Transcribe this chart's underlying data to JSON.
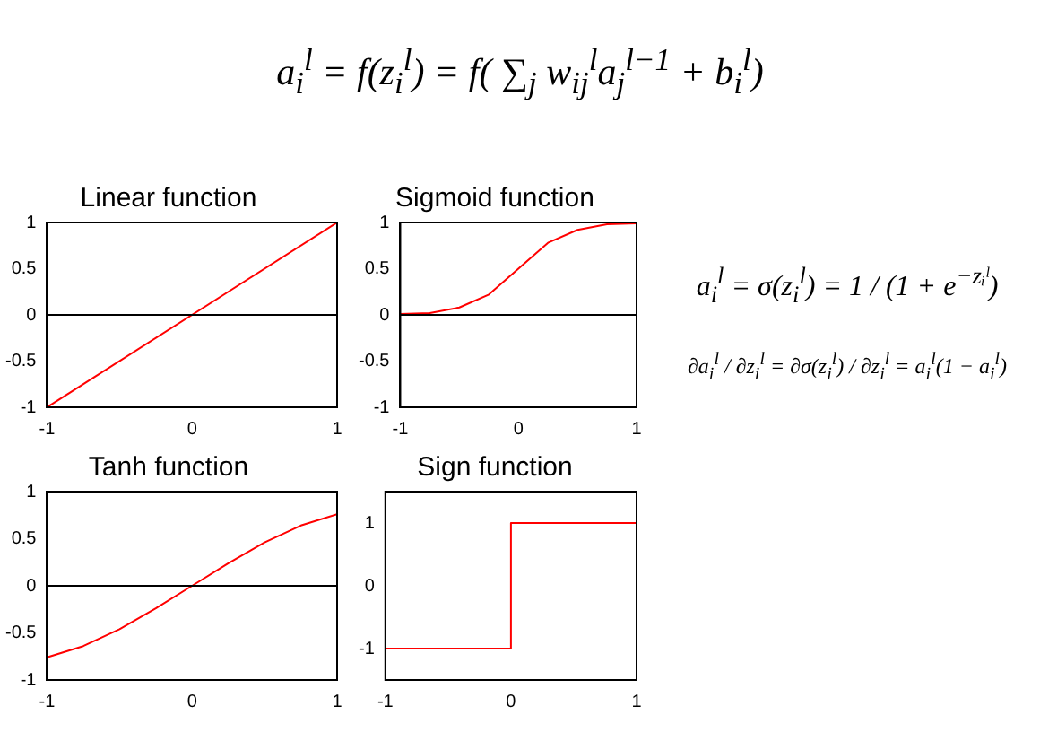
{
  "chart_data": [
    {
      "type": "other",
      "annotations": [
        "a$_{i}$$^{l}$ = f(z$_{i}$$^{l}$) = f( ∑$_{j}$ w$_{ij}$$^{l}$a$_{j}$$^{l−1}$ + b$_{i}$$^{l}$)"
      ]
    },
    {
      "type": "line",
      "title": "Linear function",
      "xlim": [
        -1,
        1
      ],
      "xticks": [
        -1,
        0,
        1
      ],
      "ylim": [
        -1,
        1
      ],
      "yticks": [
        -1,
        -0.5,
        0,
        0.5,
        1
      ],
      "marker": "none",
      "ref_lines": [
        {
          "axis": "y",
          "value": 0,
          "color": "#000000"
        }
      ],
      "series": [
        {
          "color": "#ff0000",
          "x": [
            -1,
            1
          ],
          "values": [
            -1,
            1
          ]
        }
      ]
    },
    {
      "type": "line",
      "title": "Sigmoid function",
      "xlim": [
        -1,
        1
      ],
      "xticks": [
        -1,
        0,
        1
      ],
      "ylim": [
        -1,
        1
      ],
      "yticks": [
        -1,
        -0.5,
        0,
        0.5,
        1
      ],
      "marker": "none",
      "ref_lines": [
        {
          "axis": "y",
          "value": 0,
          "color": "#000000"
        }
      ],
      "series": [
        {
          "color": "#ff0000",
          "x": [
            -1,
            -0.75,
            -0.5,
            -0.25,
            0,
            0.25,
            0.5,
            0.75,
            1
          ],
          "values": [
            0.01,
            0.02,
            0.08,
            0.22,
            0.5,
            0.78,
            0.92,
            0.98,
            0.99
          ]
        }
      ]
    },
    {
      "type": "other",
      "annotations": [
        "a$_{i}$$^{l}$ = σ(z$_{i}$$^{l}$) = 1 / (1 + e$^{−zᵢˡ}$)",
        "∂a$_{i}$$^{l}$ / ∂z$_{i}$$^{l}$ = ∂σ(z$_{i}$$^{l}$) / ∂z$_{i}$$^{l}$ = a$_{i}$$^{l}$(1 − a$_{i}$$^{l}$)"
      ]
    },
    {
      "type": "line",
      "title": "Tanh function",
      "xlim": [
        -1,
        1
      ],
      "xticks": [
        -1,
        0,
        1
      ],
      "ylim": [
        -1,
        1
      ],
      "yticks": [
        -1,
        -0.5,
        0,
        0.5,
        1
      ],
      "marker": "none",
      "ref_lines": [
        {
          "axis": "y",
          "value": 0,
          "color": "#000000"
        }
      ],
      "series": [
        {
          "color": "#ff0000",
          "x": [
            -1,
            -0.75,
            -0.5,
            -0.25,
            0,
            0.25,
            0.5,
            0.75,
            1
          ],
          "values": [
            -0.76,
            -0.64,
            -0.46,
            -0.24,
            0,
            0.24,
            0.46,
            0.64,
            0.76
          ]
        }
      ]
    },
    {
      "type": "line",
      "title": "Sign function",
      "xlim": [
        -1,
        1
      ],
      "xticks": [
        -1,
        0,
        1
      ],
      "ylim": [
        -1.5,
        1.5
      ],
      "yticks": [
        -1,
        0,
        1
      ],
      "marker": "none",
      "series": [
        {
          "color": "#ff0000",
          "x": [
            -1,
            0,
            0,
            1
          ],
          "values": [
            -1,
            -1,
            1,
            1
          ]
        }
      ]
    }
  ]
}
